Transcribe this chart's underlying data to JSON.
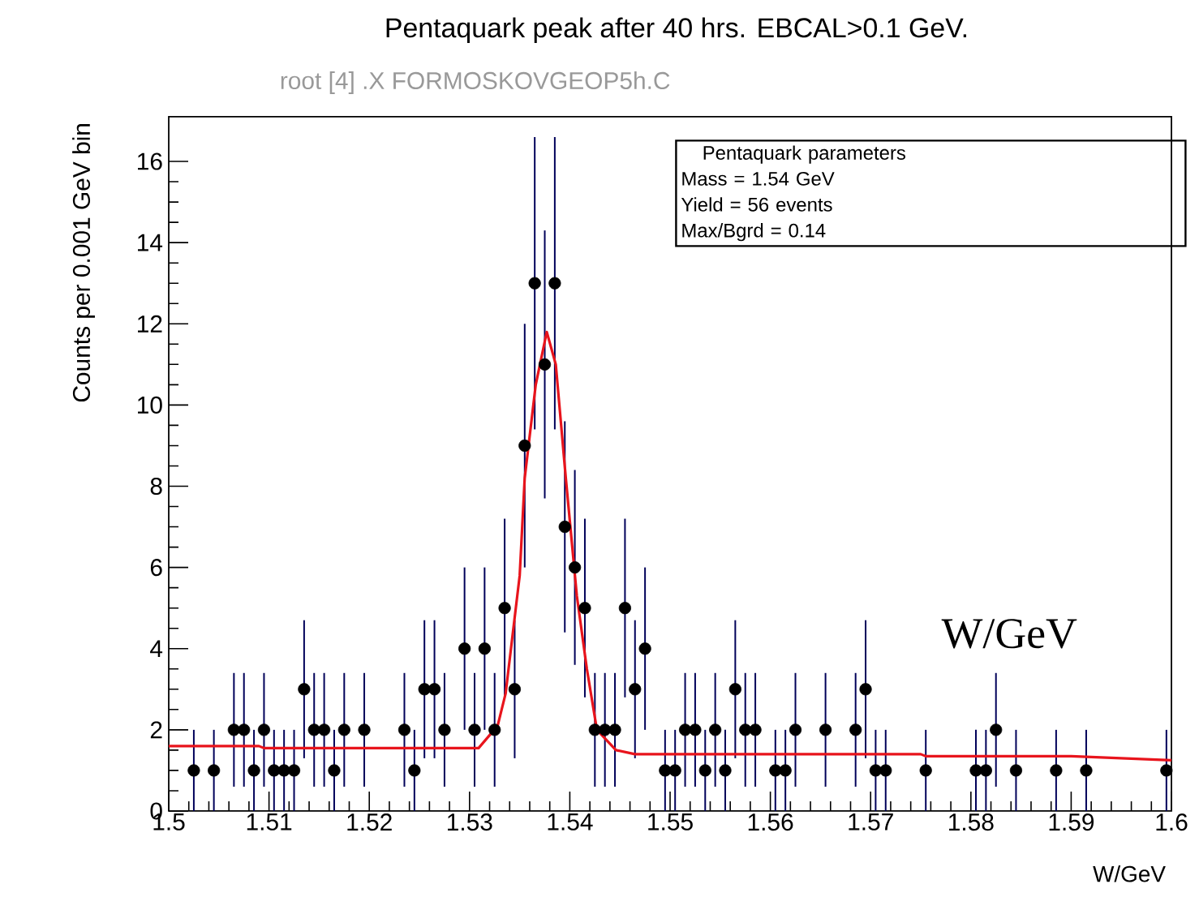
{
  "chart_data": {
    "type": "scatter",
    "title": "Pentaquark peak after 40 hrs. EBCAL>0.1 GeV.",
    "xlabel": "W/GeV",
    "ylabel": "Counts per 0.001 GeV bin",
    "annotations": [
      "root [4] .X FORMOSKOVGEOP5h.C",
      "Pentaquark parameters",
      "Mass   = 1.54 GeV",
      "Yield = 56 events",
      "Max/Bgrd = 0.14",
      "W/GeV"
    ],
    "xlim": [
      1.5,
      1.6
    ],
    "ylim": [
      0,
      17.1
    ],
    "xticks": [
      1.5,
      1.51,
      1.52,
      1.53,
      1.54,
      1.55,
      1.56,
      1.57,
      1.58,
      1.59,
      1.6
    ],
    "yticks": [
      0,
      2,
      4,
      6,
      8,
      10,
      12,
      14,
      16
    ],
    "grid": false,
    "series": [
      {
        "type": "scatter",
        "marker": "circle",
        "color": "#000000",
        "x": [
          1.5025,
          1.5045,
          1.5065,
          1.5075,
          1.5085,
          1.5095,
          1.5105,
          1.5115,
          1.5125,
          1.5135,
          1.5145,
          1.5155,
          1.5165,
          1.5175,
          1.5195,
          1.5235,
          1.5245,
          1.5255,
          1.5265,
          1.5275,
          1.5295,
          1.5305,
          1.5315,
          1.5325,
          1.5335,
          1.5345,
          1.5355,
          1.5365,
          1.5375,
          1.5385,
          1.5395,
          1.5405,
          1.5415,
          1.5425,
          1.5435,
          1.5445,
          1.5455,
          1.5465,
          1.5475,
          1.5495,
          1.5505,
          1.5515,
          1.5525,
          1.5535,
          1.5545,
          1.5555,
          1.5565,
          1.5575,
          1.5585,
          1.5605,
          1.5615,
          1.5625,
          1.5655,
          1.5685,
          1.5695,
          1.5705,
          1.5715,
          1.5755,
          1.5805,
          1.5815,
          1.5825,
          1.5845,
          1.5885,
          1.5915,
          1.5995
        ],
        "values": [
          1,
          1,
          2,
          2,
          1,
          2,
          1,
          1,
          1,
          3,
          2,
          2,
          1,
          2,
          2,
          2,
          1,
          3,
          3,
          2,
          4,
          2,
          4,
          2,
          5,
          3,
          9,
          13,
          11,
          13,
          7,
          6,
          5,
          2,
          2,
          2,
          5,
          3,
          4,
          1,
          1,
          2,
          2,
          1,
          2,
          1,
          3,
          2,
          2,
          1,
          1,
          2,
          2,
          2,
          3,
          1,
          1,
          1,
          1,
          1,
          2,
          1,
          1,
          1,
          1
        ],
        "errors": [
          1,
          1,
          1.4,
          1.4,
          1,
          1.4,
          1,
          1,
          1,
          1.7,
          1.4,
          1.4,
          1,
          1.4,
          1.4,
          1.4,
          1,
          1.7,
          1.7,
          1.4,
          2,
          1.4,
          2,
          1.4,
          2.2,
          1.7,
          3,
          3.6,
          3.3,
          3.6,
          2.6,
          2.4,
          2.2,
          1.4,
          1.4,
          1.4,
          2.2,
          1.7,
          2,
          1,
          1,
          1.4,
          1.4,
          1,
          1.4,
          1,
          1.7,
          1.4,
          1.4,
          1,
          1,
          1.4,
          1.4,
          1.4,
          1.7,
          1,
          1,
          1,
          1,
          1,
          1.4,
          1,
          1,
          1,
          1
        ]
      },
      {
        "type": "line",
        "color": "#e8141c",
        "x": [
          1.5,
          1.509,
          1.5095,
          1.5309,
          1.5328,
          1.5336,
          1.535,
          1.5355,
          1.5366,
          1.5377,
          1.5386,
          1.5396,
          1.5407,
          1.5417,
          1.5427,
          1.5446,
          1.5465,
          1.56,
          1.575,
          1.5755,
          1.59,
          1.595,
          1.6
        ],
        "values": [
          1.6,
          1.6,
          1.55,
          1.55,
          2.1,
          2.9,
          5.8,
          8.2,
          10.5,
          11.8,
          11,
          8.2,
          5.3,
          3.5,
          2,
          1.5,
          1.4,
          1.4,
          1.4,
          1.35,
          1.35,
          1.3,
          1.25
        ]
      }
    ]
  }
}
